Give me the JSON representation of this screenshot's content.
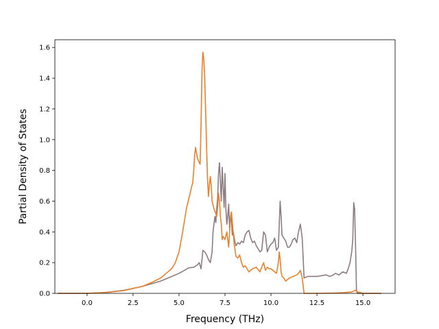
{
  "chart_data": {
    "type": "line",
    "title": "",
    "xlabel": "Frequency (THz)",
    "ylabel": "Partial Density of States",
    "xlim": [
      -1.75,
      16.75
    ],
    "ylim": [
      0.0,
      1.65
    ],
    "xticks": [
      0.0,
      2.5,
      5.0,
      7.5,
      10.0,
      12.5,
      15.0
    ],
    "xtick_labels": [
      "0.0",
      "2.5",
      "5.0",
      "7.5",
      "10.0",
      "12.5",
      "15.0"
    ],
    "yticks": [
      0.0,
      0.2,
      0.4,
      0.6,
      0.8,
      1.0,
      1.2,
      1.4,
      1.6
    ],
    "ytick_labels": [
      "0.0",
      "0.2",
      "0.4",
      "0.6",
      "0.8",
      "1.0",
      "1.2",
      "1.4",
      "1.6"
    ],
    "grid": false,
    "legend": "none",
    "series": [
      {
        "color": "#8c7b80",
        "x": [
          -1.6,
          0.0,
          1.0,
          2.0,
          3.0,
          4.0,
          4.5,
          5.0,
          5.3,
          5.5,
          5.8,
          6.0,
          6.1,
          6.2,
          6.3,
          6.4,
          6.5,
          6.6,
          6.7,
          6.8,
          6.85,
          6.9,
          6.95,
          7.0,
          7.05,
          7.1,
          7.15,
          7.2,
          7.25,
          7.3,
          7.35,
          7.4,
          7.45,
          7.5,
          7.55,
          7.6,
          7.65,
          7.7,
          7.75,
          7.8,
          7.85,
          7.9,
          7.95,
          8.0,
          8.05,
          8.1,
          8.2,
          8.3,
          8.4,
          8.5,
          8.6,
          8.7,
          8.8,
          8.9,
          9.0,
          9.1,
          9.2,
          9.3,
          9.4,
          9.5,
          9.6,
          9.7,
          9.8,
          9.9,
          10.0,
          10.1,
          10.2,
          10.3,
          10.4,
          10.45,
          10.5,
          10.55,
          10.6,
          10.7,
          10.8,
          10.9,
          11.0,
          11.1,
          11.2,
          11.3,
          11.4,
          11.5,
          11.6,
          11.7,
          11.8,
          12.0,
          12.5,
          13.0,
          13.2,
          13.4,
          13.5,
          13.7,
          13.9,
          14.1,
          14.2,
          14.3,
          14.4,
          14.45,
          14.5,
          14.55,
          14.6,
          14.65,
          14.7,
          15.0,
          16.0
        ],
        "y": [
          0.0,
          0.0,
          0.006,
          0.02,
          0.045,
          0.08,
          0.105,
          0.13,
          0.15,
          0.165,
          0.17,
          0.185,
          0.2,
          0.16,
          0.28,
          0.27,
          0.25,
          0.22,
          0.2,
          0.27,
          0.4,
          0.45,
          0.5,
          0.46,
          0.55,
          0.62,
          0.78,
          0.85,
          0.72,
          0.6,
          0.82,
          0.7,
          0.56,
          0.78,
          0.55,
          0.45,
          0.5,
          0.58,
          0.42,
          0.5,
          0.47,
          0.38,
          0.4,
          0.36,
          0.33,
          0.31,
          0.33,
          0.32,
          0.34,
          0.33,
          0.38,
          0.4,
          0.41,
          0.36,
          0.33,
          0.34,
          0.31,
          0.29,
          0.27,
          0.28,
          0.4,
          0.38,
          0.27,
          0.3,
          0.32,
          0.33,
          0.36,
          0.28,
          0.3,
          0.45,
          0.6,
          0.5,
          0.38,
          0.36,
          0.34,
          0.3,
          0.3,
          0.32,
          0.35,
          0.36,
          0.33,
          0.4,
          0.45,
          0.36,
          0.1,
          0.11,
          0.11,
          0.12,
          0.11,
          0.12,
          0.13,
          0.12,
          0.14,
          0.13,
          0.16,
          0.2,
          0.28,
          0.35,
          0.59,
          0.55,
          0.3,
          0.02,
          0.0,
          0.0,
          0.0
        ]
      },
      {
        "color": "#e8812a",
        "x": [
          -1.6,
          0.0,
          1.0,
          2.0,
          3.0,
          3.5,
          4.0,
          4.3,
          4.6,
          4.8,
          5.0,
          5.2,
          5.4,
          5.5,
          5.6,
          5.7,
          5.75,
          5.8,
          5.85,
          5.9,
          6.0,
          6.1,
          6.15,
          6.2,
          6.25,
          6.3,
          6.35,
          6.4,
          6.5,
          6.55,
          6.6,
          6.65,
          6.7,
          6.75,
          6.8,
          6.9,
          7.0,
          7.05,
          7.1,
          7.15,
          7.2,
          7.25,
          7.3,
          7.35,
          7.4,
          7.5,
          7.6,
          7.7,
          7.8,
          7.85,
          7.9,
          8.0,
          8.1,
          8.2,
          8.3,
          8.4,
          8.5,
          8.6,
          8.7,
          8.8,
          8.9,
          9.0,
          9.2,
          9.4,
          9.6,
          9.7,
          9.8,
          9.9,
          10.0,
          10.1,
          10.2,
          10.3,
          10.4,
          10.45,
          10.5,
          10.55,
          10.6,
          10.7,
          10.8,
          11.0,
          11.2,
          11.4,
          11.5,
          11.6,
          11.7,
          11.8,
          12.5,
          13.5,
          14.0,
          14.4,
          14.5,
          14.6,
          14.7,
          15.0,
          16.0
        ],
        "y": [
          0.0,
          0.0,
          0.005,
          0.018,
          0.045,
          0.07,
          0.1,
          0.13,
          0.16,
          0.2,
          0.27,
          0.4,
          0.55,
          0.6,
          0.65,
          0.7,
          0.72,
          0.8,
          0.9,
          0.95,
          0.88,
          0.85,
          0.84,
          1.1,
          1.45,
          1.57,
          1.52,
          1.4,
          0.95,
          0.75,
          0.63,
          0.7,
          0.76,
          0.7,
          0.6,
          0.55,
          0.52,
          0.5,
          0.56,
          0.65,
          0.6,
          0.5,
          0.45,
          0.35,
          0.37,
          0.35,
          0.4,
          0.3,
          0.5,
          0.53,
          0.46,
          0.32,
          0.24,
          0.23,
          0.25,
          0.2,
          0.17,
          0.18,
          0.16,
          0.14,
          0.15,
          0.16,
          0.17,
          0.14,
          0.2,
          0.15,
          0.17,
          0.16,
          0.16,
          0.15,
          0.14,
          0.13,
          0.2,
          0.27,
          0.22,
          0.14,
          0.11,
          0.1,
          0.08,
          0.1,
          0.11,
          0.12,
          0.13,
          0.15,
          0.1,
          0.0,
          0.0,
          0.002,
          0.005,
          0.01,
          0.015,
          0.02,
          0.01,
          0.0,
          0.0
        ]
      }
    ]
  }
}
